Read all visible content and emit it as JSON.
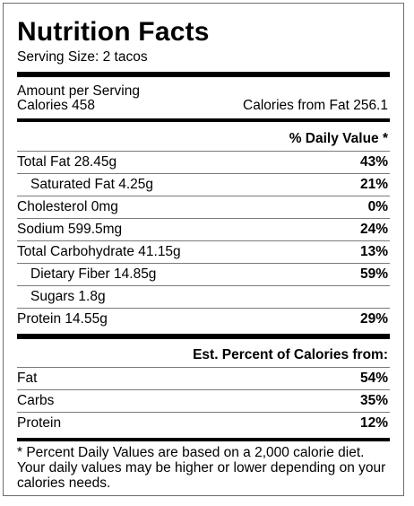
{
  "title": "Nutrition Facts",
  "serving": "Serving Size: 2 tacos",
  "amount_per_serving": "Amount per Serving",
  "calories": "Calories 458",
  "calories_from_fat": "Calories from Fat 256.1",
  "dv_header": "% Daily Value *",
  "nutrients": [
    {
      "label": "Total Fat 28.45g",
      "dv": "43%"
    },
    {
      "label": "Saturated Fat 4.25g",
      "dv": "21%"
    },
    {
      "label": "Cholesterol 0mg",
      "dv": "0%"
    },
    {
      "label": "Sodium 599.5mg",
      "dv": "24%"
    },
    {
      "label": "Total Carbohydrate 41.15g",
      "dv": "13%"
    },
    {
      "label": "Dietary Fiber 14.85g",
      "dv": "59%"
    },
    {
      "label": "Sugars 1.8g",
      "dv": ""
    },
    {
      "label": "Protein 14.55g",
      "dv": "29%"
    }
  ],
  "est_header": "Est. Percent of Calories from:",
  "calorie_sources": [
    {
      "label": "Fat",
      "pct": "54%"
    },
    {
      "label": "Carbs",
      "pct": "35%"
    },
    {
      "label": "Protein",
      "pct": "12%"
    }
  ],
  "footnote": "* Percent Daily Values are based on a 2,000 calorie diet. Your daily values may be higher or lower depending on your calories needs."
}
